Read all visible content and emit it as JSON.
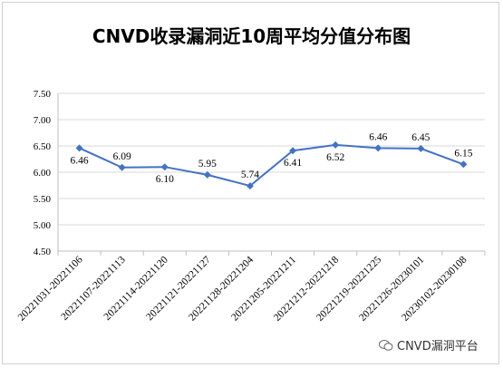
{
  "chart_data": {
    "type": "line",
    "title": "CNVD收录漏洞近10周平均分值分布图",
    "categories": [
      "20221031-20221106",
      "20221107-20221113",
      "20221114-20221120",
      "20221121-20221127",
      "20221128-20221204",
      "20221205-20221211",
      "20221212-20221218",
      "20221219-20221225",
      "20221226-20230101",
      "20230102-20230108"
    ],
    "values": [
      6.46,
      6.09,
      6.1,
      5.95,
      5.74,
      6.41,
      6.52,
      6.46,
      6.45,
      6.15
    ],
    "value_labels": [
      "6.46",
      "6.09",
      "6.10",
      "5.95",
      "5.74",
      "6.41",
      "6.52",
      "6.46",
      "6.45",
      "6.15"
    ],
    "y_ticks": [
      "4.50",
      "5.00",
      "5.50",
      "6.00",
      "6.50",
      "7.00",
      "7.50"
    ],
    "ylim": [
      4.5,
      7.5
    ],
    "grid": true,
    "legend": "none",
    "line_color": "#4472C4"
  },
  "watermark": {
    "text": "CNVD漏洞平台",
    "icon": "wechat-icon"
  }
}
